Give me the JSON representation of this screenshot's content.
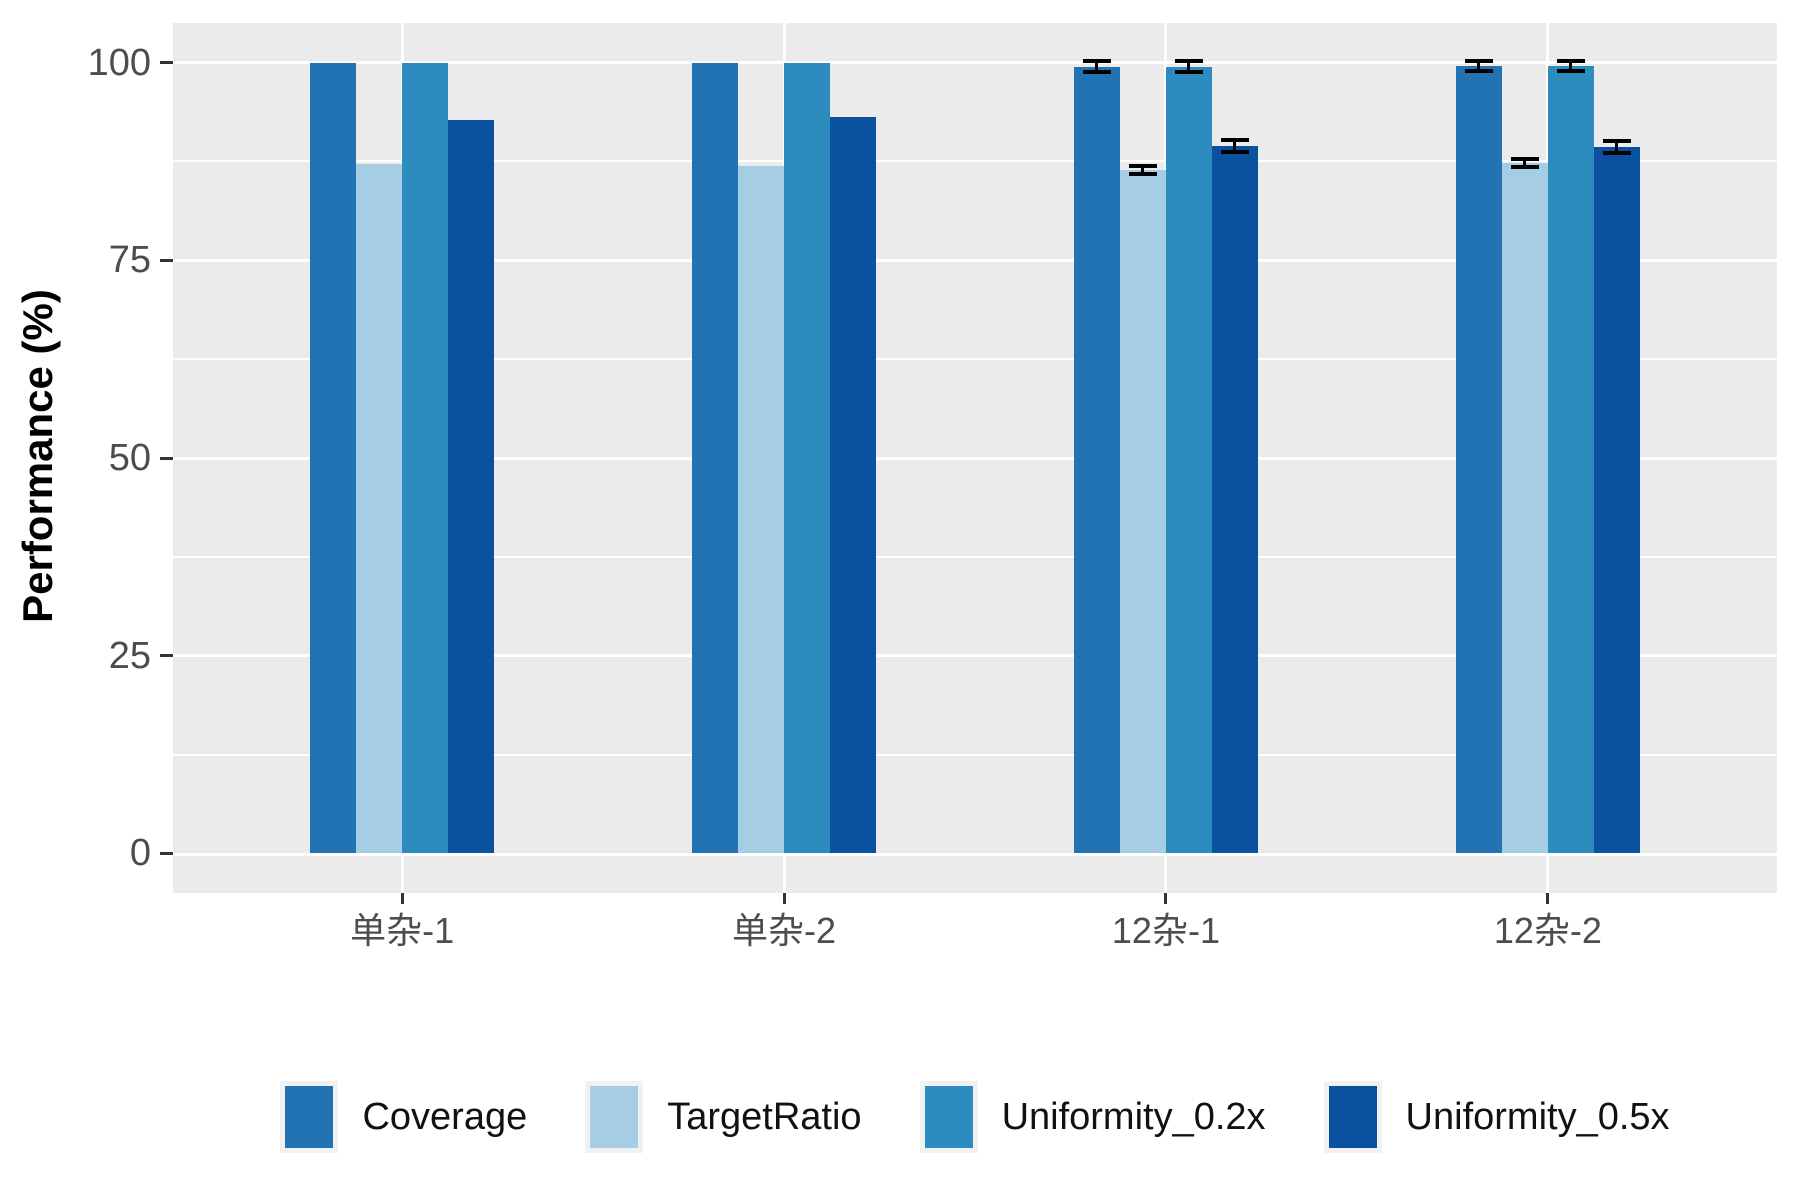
{
  "chart_data": {
    "type": "bar",
    "title": "",
    "xlabel": "",
    "ylabel": "Performance (%)",
    "ylim": [
      0,
      100
    ],
    "y_ticks": [
      0,
      25,
      50,
      75,
      100
    ],
    "y_minor_ticks": [
      12.5,
      37.5,
      62.5,
      87.5
    ],
    "grid": true,
    "legend_position": "bottom",
    "panel_background": "#EBEBEB",
    "gridline_color": "#FFFFFF",
    "axis_text_color": "#4D4D4D",
    "error_bar_color": "#000000",
    "categories": [
      "单杂-1",
      "单杂-2",
      "12杂-1",
      "12杂-2"
    ],
    "series": [
      {
        "name": "Coverage",
        "color": "#2173B4",
        "values": [
          99.9,
          99.9,
          99.5,
          99.6
        ],
        "errors": [
          0,
          0,
          0.4,
          0.4
        ]
      },
      {
        "name": "TargetRatio",
        "color": "#A5CDE3",
        "values": [
          87.2,
          86.9,
          86.4,
          87.3
        ],
        "errors": [
          0,
          0,
          0.3,
          0.3
        ]
      },
      {
        "name": "Uniformity_0.2x",
        "color": "#2D8CBE",
        "values": [
          99.9,
          99.9,
          99.5,
          99.6
        ],
        "errors": [
          0,
          0,
          0.4,
          0.4
        ]
      },
      {
        "name": "Uniformity_0.5x",
        "color": "#0A529F",
        "values": [
          92.7,
          93.1,
          89.4,
          89.3
        ],
        "errors": [
          0,
          0,
          0.5,
          0.5
        ]
      }
    ]
  }
}
